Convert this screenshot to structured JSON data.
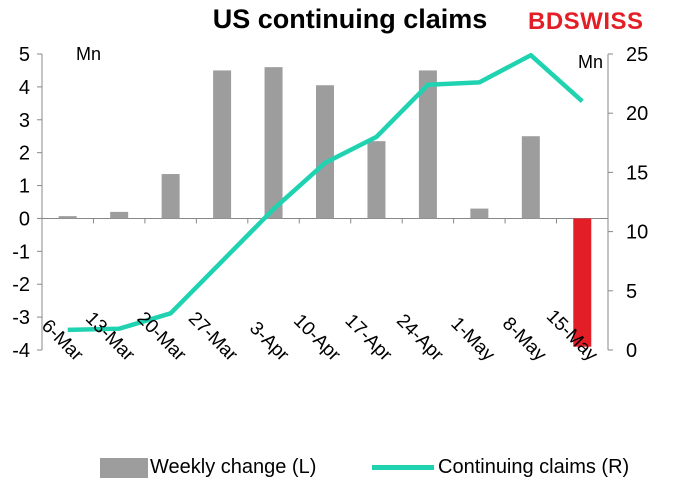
{
  "brand": {
    "part1": "BD",
    "part2": "SWISS"
  },
  "chart_data": {
    "type": "bar",
    "title": "US continuing claims",
    "categories": [
      "6-Mar",
      "13-Mar",
      "20-Mar",
      "27-Mar",
      "3-Apr",
      "10-Apr",
      "17-Apr",
      "24-Apr",
      "1-May",
      "8-May",
      "15-May"
    ],
    "left_axis": {
      "unit": "Mn",
      "ylim": [
        -4,
        5
      ],
      "ticks": [
        -4,
        -3,
        -2,
        -1,
        0,
        1,
        2,
        3,
        4,
        5
      ]
    },
    "right_axis": {
      "unit": "Mn",
      "ylim": [
        0,
        25
      ],
      "ticks": [
        0,
        5,
        10,
        15,
        20,
        25
      ]
    },
    "series": [
      {
        "name": "Weekly change (L)",
        "type": "bar",
        "axis": "left",
        "color": "#9d9d9d",
        "highlight_color": "#e41e26",
        "values": [
          0.07,
          0.2,
          1.35,
          4.5,
          4.6,
          4.05,
          2.35,
          4.5,
          0.3,
          2.5,
          -3.9
        ]
      },
      {
        "name": "Continuing claims (R)",
        "type": "line",
        "axis": "right",
        "color": "#1fd3b1",
        "values": [
          1.7,
          1.8,
          3.1,
          7.5,
          11.9,
          15.8,
          18.0,
          22.4,
          22.6,
          24.9,
          21.0
        ]
      }
    ],
    "grid": false,
    "legend_position": "bottom"
  }
}
